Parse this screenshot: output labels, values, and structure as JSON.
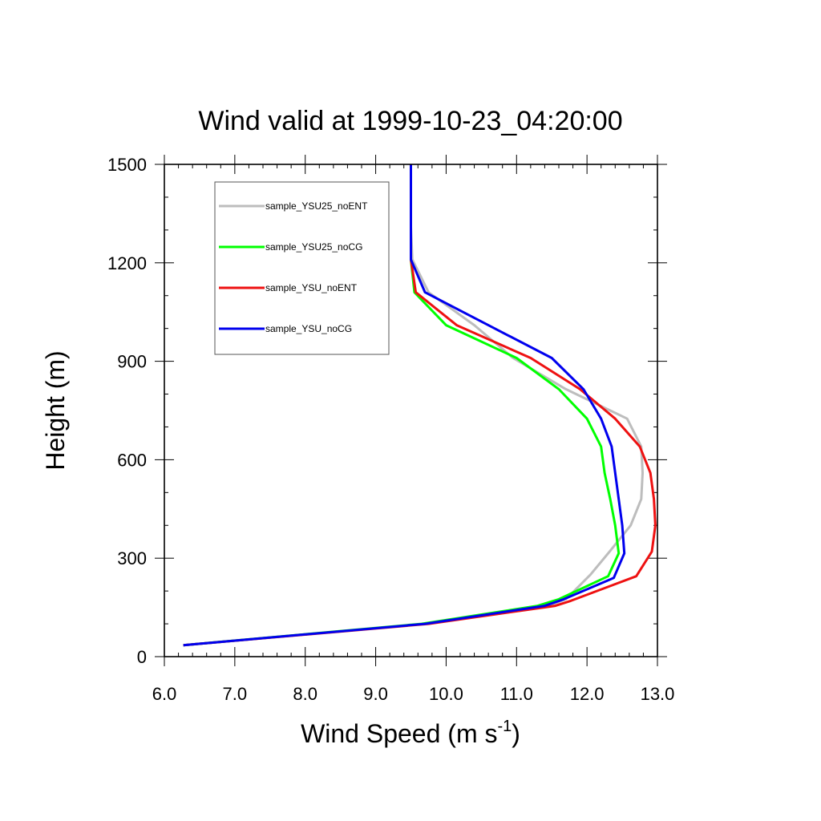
{
  "chart_data": {
    "type": "line",
    "title": "Wind valid at 1999-10-23_04:20:00",
    "xlabel": "Wind Speed (m s",
    "xlabel_sup": "-1",
    "xlabel_end": ")",
    "ylabel": "Height (m)",
    "xlim": [
      6.0,
      13.0
    ],
    "ylim": [
      0,
      1500
    ],
    "xticks": [
      6.0,
      7.0,
      8.0,
      9.0,
      10.0,
      11.0,
      12.0,
      13.0
    ],
    "xtick_labels": [
      "6.0",
      "7.0",
      "8.0",
      "9.0",
      "10.0",
      "11.0",
      "12.0",
      "13.0"
    ],
    "yticks": [
      0,
      300,
      600,
      900,
      1200,
      1500
    ],
    "ytick_labels": [
      "0",
      "300",
      "600",
      "900",
      "1200",
      "1500"
    ],
    "grid": false,
    "legend_position": "top-left",
    "series": [
      {
        "name": "sample_YSU25_noENT",
        "color": "#bdbdbd",
        "x": [
          6.27,
          9.7,
          11.45,
          11.7,
          12.05,
          12.32,
          12.62,
          12.77,
          12.79,
          12.77,
          12.57,
          11.7,
          10.95,
          10.4,
          9.75,
          9.52,
          9.5,
          9.5,
          9.5,
          9.5
        ],
        "y": [
          35,
          100,
          155,
          175,
          250,
          320,
          400,
          480,
          560,
          640,
          725,
          815,
          910,
          1010,
          1110,
          1210,
          1310,
          1400,
          1450,
          1500
        ]
      },
      {
        "name": "sample_YSU25_noCG",
        "color": "#00ff00",
        "x": [
          6.27,
          9.65,
          11.3,
          11.6,
          12.3,
          12.45,
          12.4,
          12.33,
          12.25,
          12.2,
          12.0,
          11.6,
          11.0,
          10.0,
          9.55,
          9.5,
          9.5,
          9.5
        ],
        "y": [
          35,
          100,
          155,
          175,
          245,
          315,
          400,
          480,
          560,
          640,
          725,
          815,
          910,
          1010,
          1110,
          1210,
          1310,
          1500
        ]
      },
      {
        "name": "sample_YSU_noENT",
        "color": "#ee1111",
        "x": [
          6.27,
          9.75,
          11.55,
          11.77,
          12.7,
          12.92,
          12.97,
          12.95,
          12.9,
          12.75,
          12.4,
          11.9,
          11.2,
          10.15,
          9.57,
          9.5,
          9.5,
          9.5
        ],
        "y": [
          35,
          100,
          155,
          170,
          245,
          320,
          400,
          480,
          560,
          640,
          725,
          815,
          910,
          1010,
          1110,
          1210,
          1310,
          1500
        ]
      },
      {
        "name": "sample_YSU_noCG",
        "color": "#0000ee",
        "x": [
          6.27,
          9.7,
          11.4,
          11.67,
          12.38,
          12.53,
          12.5,
          12.45,
          12.4,
          12.35,
          12.2,
          11.95,
          11.5,
          10.6,
          9.7,
          9.5,
          9.5,
          9.5
        ],
        "y": [
          35,
          100,
          155,
          175,
          240,
          315,
          400,
          480,
          560,
          640,
          725,
          815,
          910,
          1010,
          1110,
          1210,
          1310,
          1500
        ]
      }
    ]
  }
}
